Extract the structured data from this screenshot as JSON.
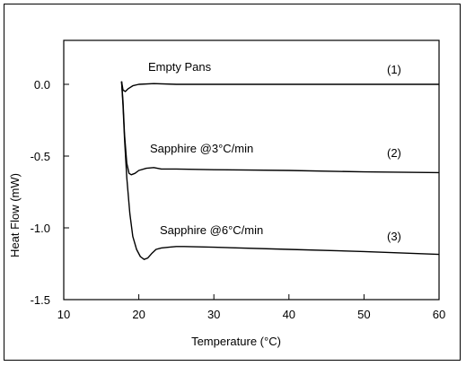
{
  "chart_data": {
    "type": "line",
    "title": "",
    "xlabel": "Temperature (°C)",
    "ylabel": "Heat Flow (mW)",
    "xlim": [
      10,
      60
    ],
    "ylim": [
      -1.5,
      0.0
    ],
    "xticks": [
      10,
      20,
      30,
      40,
      50,
      60
    ],
    "yticks": [
      0.0,
      -0.5,
      -1.0,
      -1.5
    ],
    "xtick_labels": [
      "10",
      "20",
      "30",
      "40",
      "50",
      "60"
    ],
    "ytick_labels": [
      "0.0",
      "-0.5",
      "-1.0",
      "-1.5"
    ],
    "grid": false,
    "legend": "none",
    "series": [
      {
        "label": "Empty Pans",
        "number": "(1)",
        "x": [
          17.7,
          17.9,
          18.2,
          18.6,
          19.2,
          20.0,
          22.0,
          25.0,
          30.0,
          40.0,
          50.0,
          60.0
        ],
        "y": [
          0.02,
          -0.04,
          -0.05,
          -0.03,
          -0.01,
          0.0,
          0.005,
          0.0,
          0.0,
          0.0,
          0.0,
          0.0
        ]
      },
      {
        "label": "Sapphire @3°C/min",
        "number": "(2)",
        "x": [
          17.7,
          17.9,
          18.1,
          18.4,
          18.7,
          19.0,
          19.5,
          20.0,
          21.0,
          22.0,
          23.0,
          25.0,
          30.0,
          40.0,
          50.0,
          60.0
        ],
        "y": [
          0.02,
          -0.12,
          -0.35,
          -0.55,
          -0.62,
          -0.63,
          -0.62,
          -0.6,
          -0.585,
          -0.58,
          -0.59,
          -0.59,
          -0.595,
          -0.6,
          -0.61,
          -0.615
        ]
      },
      {
        "label": "Sapphire @6°C/min",
        "number": "(3)",
        "x": [
          17.7,
          17.9,
          18.1,
          18.4,
          18.8,
          19.2,
          19.7,
          20.2,
          20.7,
          21.2,
          21.7,
          22.3,
          23.0,
          24.0,
          25.0,
          26.0,
          30.0,
          40.0,
          50.0,
          60.0
        ],
        "y": [
          0.02,
          -0.15,
          -0.38,
          -0.65,
          -0.9,
          -1.06,
          -1.15,
          -1.2,
          -1.22,
          -1.21,
          -1.18,
          -1.15,
          -1.14,
          -1.135,
          -1.13,
          -1.13,
          -1.135,
          -1.15,
          -1.165,
          -1.185
        ]
      }
    ]
  }
}
